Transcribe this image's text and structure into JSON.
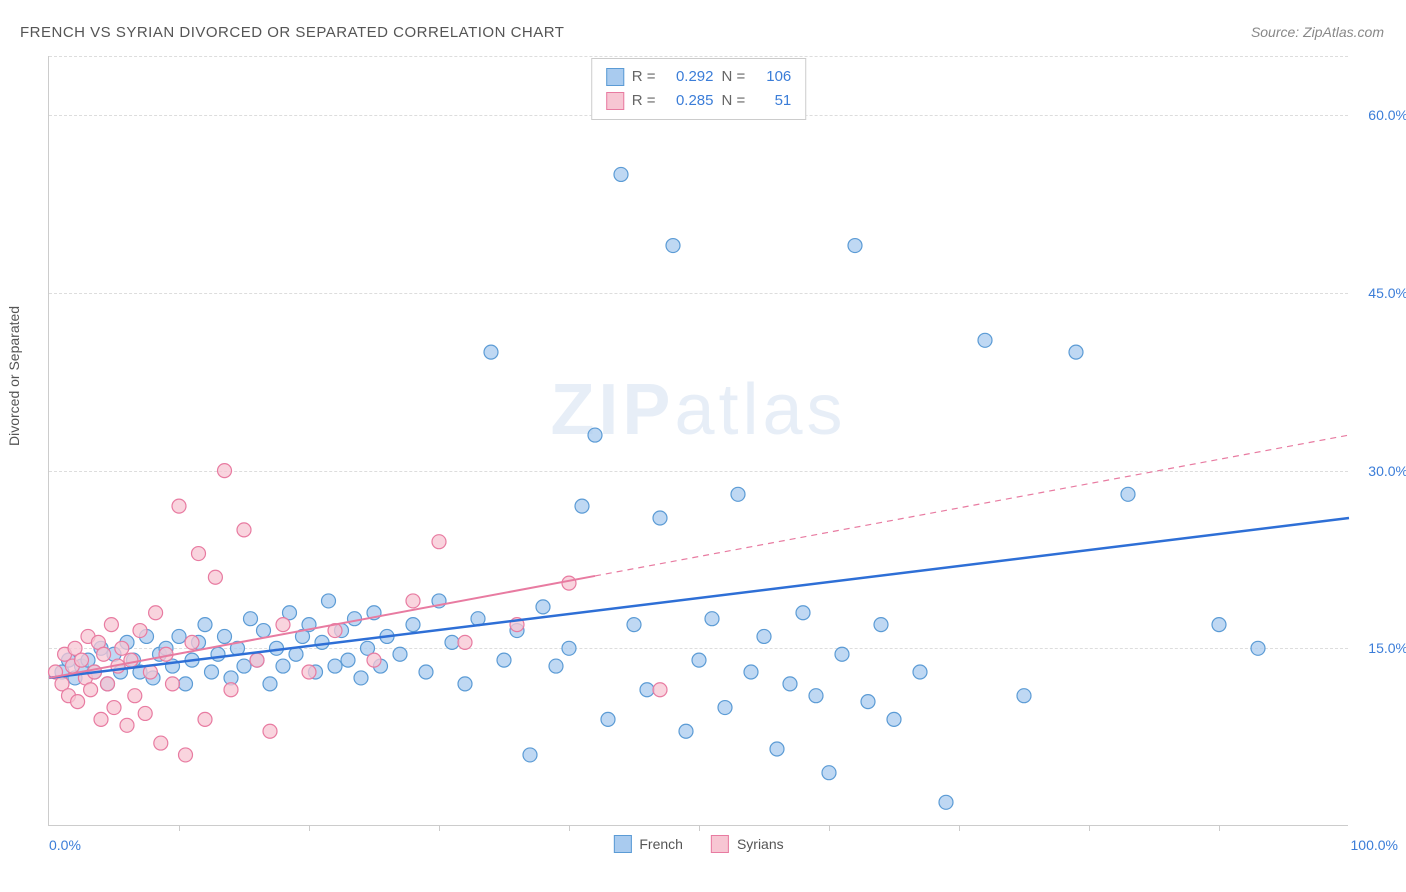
{
  "title": "FRENCH VS SYRIAN DIVORCED OR SEPARATED CORRELATION CHART",
  "source_label": "Source:",
  "source_link_text": "ZipAtlas.com",
  "y_axis_title": "Divorced or Separated",
  "watermark_bold": "ZIP",
  "watermark_light": "atlas",
  "chart": {
    "type": "scatter",
    "xlim": [
      0,
      100
    ],
    "ylim": [
      0,
      65
    ],
    "x_min_label": "0.0%",
    "x_max_label": "100.0%",
    "y_ticks": [
      15,
      30,
      45,
      60
    ],
    "y_tick_labels": [
      "15.0%",
      "30.0%",
      "45.0%",
      "60.0%"
    ],
    "x_tick_positions": [
      10,
      20,
      30,
      40,
      50,
      60,
      70,
      80,
      90
    ],
    "background_color": "#ffffff",
    "grid_color": "#dddddd",
    "axis_color": "#cccccc",
    "tick_label_color": "#3b7dd8",
    "marker_radius": 7,
    "marker_stroke_width": 1.2,
    "series": [
      {
        "name": "French",
        "fill": "#a9cbef",
        "stroke": "#5b9bd5",
        "swatch_fill": "#a9cbef",
        "swatch_border": "#5b9bd5",
        "line_color": "#2e6fd6",
        "line_width": 2.5,
        "r_value": "0.292",
        "n_value": "106",
        "trend": {
          "x1": 0,
          "y1": 12.5,
          "x2": 100,
          "y2": 26,
          "dashed_from_x": 100
        },
        "points": [
          [
            1,
            13
          ],
          [
            1.5,
            14
          ],
          [
            2,
            12.5
          ],
          [
            2.5,
            13.5
          ],
          [
            3,
            14
          ],
          [
            3.5,
            13
          ],
          [
            4,
            15
          ],
          [
            4.5,
            12
          ],
          [
            5,
            14.5
          ],
          [
            5.5,
            13
          ],
          [
            6,
            15.5
          ],
          [
            6.5,
            14
          ],
          [
            7,
            13
          ],
          [
            7.5,
            16
          ],
          [
            8,
            12.5
          ],
          [
            8.5,
            14.5
          ],
          [
            9,
            15
          ],
          [
            9.5,
            13.5
          ],
          [
            10,
            16
          ],
          [
            10.5,
            12
          ],
          [
            11,
            14
          ],
          [
            11.5,
            15.5
          ],
          [
            12,
            17
          ],
          [
            12.5,
            13
          ],
          [
            13,
            14.5
          ],
          [
            13.5,
            16
          ],
          [
            14,
            12.5
          ],
          [
            14.5,
            15
          ],
          [
            15,
            13.5
          ],
          [
            15.5,
            17.5
          ],
          [
            16,
            14
          ],
          [
            16.5,
            16.5
          ],
          [
            17,
            12
          ],
          [
            17.5,
            15
          ],
          [
            18,
            13.5
          ],
          [
            18.5,
            18
          ],
          [
            19,
            14.5
          ],
          [
            19.5,
            16
          ],
          [
            20,
            17
          ],
          [
            20.5,
            13
          ],
          [
            21,
            15.5
          ],
          [
            21.5,
            19
          ],
          [
            22,
            13.5
          ],
          [
            22.5,
            16.5
          ],
          [
            23,
            14
          ],
          [
            23.5,
            17.5
          ],
          [
            24,
            12.5
          ],
          [
            24.5,
            15
          ],
          [
            25,
            18
          ],
          [
            25.5,
            13.5
          ],
          [
            26,
            16
          ],
          [
            27,
            14.5
          ],
          [
            28,
            17
          ],
          [
            29,
            13
          ],
          [
            30,
            19
          ],
          [
            31,
            15.5
          ],
          [
            32,
            12
          ],
          [
            33,
            17.5
          ],
          [
            34,
            40
          ],
          [
            35,
            14
          ],
          [
            36,
            16.5
          ],
          [
            37,
            6
          ],
          [
            38,
            18.5
          ],
          [
            39,
            13.5
          ],
          [
            40,
            15
          ],
          [
            41,
            27
          ],
          [
            42,
            33
          ],
          [
            43,
            9
          ],
          [
            44,
            55
          ],
          [
            45,
            17
          ],
          [
            46,
            11.5
          ],
          [
            47,
            26
          ],
          [
            48,
            49
          ],
          [
            49,
            8
          ],
          [
            50,
            14
          ],
          [
            51,
            17.5
          ],
          [
            52,
            10
          ],
          [
            53,
            28
          ],
          [
            54,
            13
          ],
          [
            55,
            16
          ],
          [
            56,
            6.5
          ],
          [
            57,
            12
          ],
          [
            58,
            18
          ],
          [
            59,
            11
          ],
          [
            60,
            4.5
          ],
          [
            61,
            14.5
          ],
          [
            62,
            49
          ],
          [
            63,
            10.5
          ],
          [
            64,
            17
          ],
          [
            65,
            9
          ],
          [
            67,
            13
          ],
          [
            69,
            2
          ],
          [
            72,
            41
          ],
          [
            75,
            11
          ],
          [
            79,
            40
          ],
          [
            83,
            28
          ],
          [
            90,
            17
          ],
          [
            93,
            15
          ]
        ]
      },
      {
        "name": "Syrians",
        "fill": "#f7c6d3",
        "stroke": "#e87ba1",
        "swatch_fill": "#f7c6d3",
        "swatch_border": "#e87ba1",
        "line_color": "#e87ba1",
        "line_width": 2,
        "r_value": "0.285",
        "n_value": "51",
        "trend": {
          "x1": 0,
          "y1": 12.5,
          "x2": 100,
          "y2": 33,
          "dashed_from_x": 42
        },
        "points": [
          [
            0.5,
            13
          ],
          [
            1,
            12
          ],
          [
            1.2,
            14.5
          ],
          [
            1.5,
            11
          ],
          [
            1.8,
            13.5
          ],
          [
            2,
            15
          ],
          [
            2.2,
            10.5
          ],
          [
            2.5,
            14
          ],
          [
            2.8,
            12.5
          ],
          [
            3,
            16
          ],
          [
            3.2,
            11.5
          ],
          [
            3.5,
            13
          ],
          [
            3.8,
            15.5
          ],
          [
            4,
            9
          ],
          [
            4.2,
            14.5
          ],
          [
            4.5,
            12
          ],
          [
            4.8,
            17
          ],
          [
            5,
            10
          ],
          [
            5.3,
            13.5
          ],
          [
            5.6,
            15
          ],
          [
            6,
            8.5
          ],
          [
            6.3,
            14
          ],
          [
            6.6,
            11
          ],
          [
            7,
            16.5
          ],
          [
            7.4,
            9.5
          ],
          [
            7.8,
            13
          ],
          [
            8.2,
            18
          ],
          [
            8.6,
            7
          ],
          [
            9,
            14.5
          ],
          [
            9.5,
            12
          ],
          [
            10,
            27
          ],
          [
            10.5,
            6
          ],
          [
            11,
            15.5
          ],
          [
            11.5,
            23
          ],
          [
            12,
            9
          ],
          [
            12.8,
            21
          ],
          [
            13.5,
            30
          ],
          [
            14,
            11.5
          ],
          [
            15,
            25
          ],
          [
            16,
            14
          ],
          [
            17,
            8
          ],
          [
            18,
            17
          ],
          [
            20,
            13
          ],
          [
            22,
            16.5
          ],
          [
            25,
            14
          ],
          [
            28,
            19
          ],
          [
            30,
            24
          ],
          [
            32,
            15.5
          ],
          [
            36,
            17
          ],
          [
            40,
            20.5
          ],
          [
            47,
            11.5
          ]
        ]
      }
    ]
  },
  "stats_legend": {
    "r_prefix": "R =",
    "n_prefix": "N ="
  },
  "bottom_legend": {
    "items": [
      "French",
      "Syrians"
    ]
  }
}
